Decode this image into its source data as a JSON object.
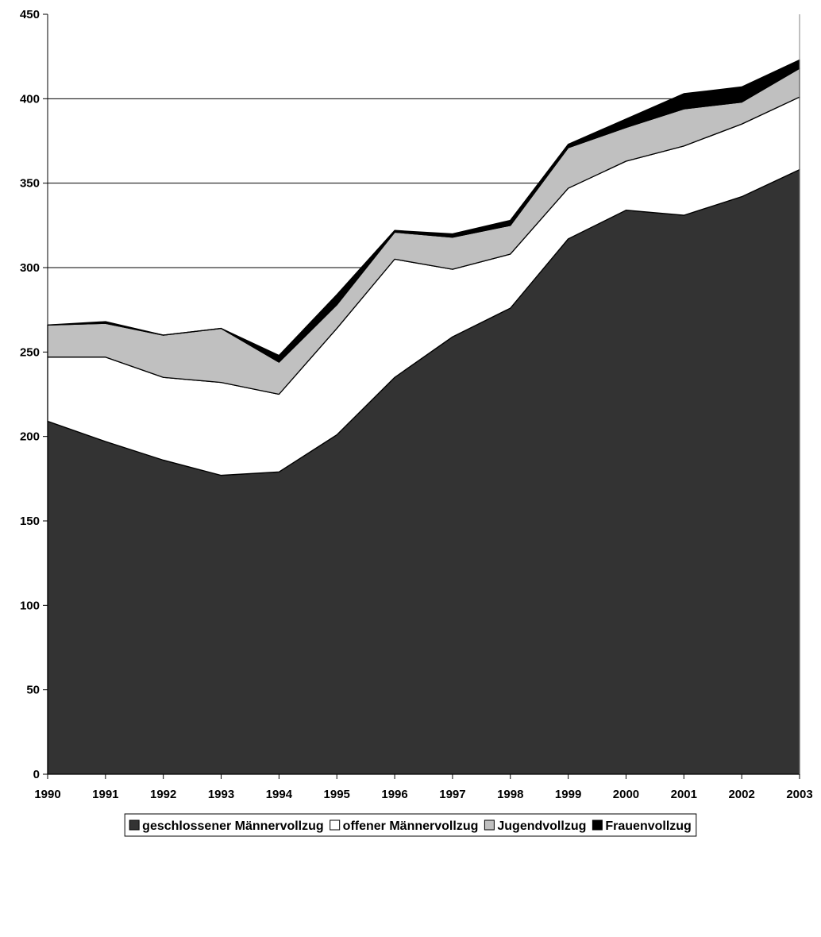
{
  "chart_data": {
    "type": "area",
    "stacked": true,
    "x": [
      "1990",
      "1991",
      "1992",
      "1993",
      "1994",
      "1995",
      "1996",
      "1997",
      "1998",
      "1999",
      "2000",
      "2001",
      "2002",
      "2003"
    ],
    "series": [
      {
        "name": "geschlossener Männervollzug",
        "color": "#333333",
        "values": [
          209,
          197,
          186,
          177,
          179,
          201,
          235,
          259,
          276,
          317,
          334,
          331,
          342,
          358
        ]
      },
      {
        "name": "offener Männervollzug",
        "color": "#ffffff",
        "values": [
          38,
          50,
          49,
          55,
          46,
          63,
          70,
          40,
          32,
          30,
          29,
          41,
          43,
          43
        ]
      },
      {
        "name": "Jugendvollzug",
        "color": "#c0c0c0",
        "values": [
          19,
          20,
          25,
          32,
          19,
          14,
          16,
          19,
          17,
          24,
          20,
          22,
          13,
          17
        ]
      },
      {
        "name": "Frauenvollzug",
        "color": "#000000",
        "values": [
          0,
          1,
          0,
          0,
          4,
          6,
          1,
          2,
          3,
          2,
          5,
          9,
          9,
          5
        ]
      }
    ],
    "y_ticks": [
      "0",
      "50",
      "100",
      "150",
      "200",
      "250",
      "300",
      "350",
      "400",
      "450"
    ],
    "ylim": [
      0,
      450
    ],
    "gridlines": [
      300,
      350,
      400
    ],
    "legend_position": "bottom"
  }
}
